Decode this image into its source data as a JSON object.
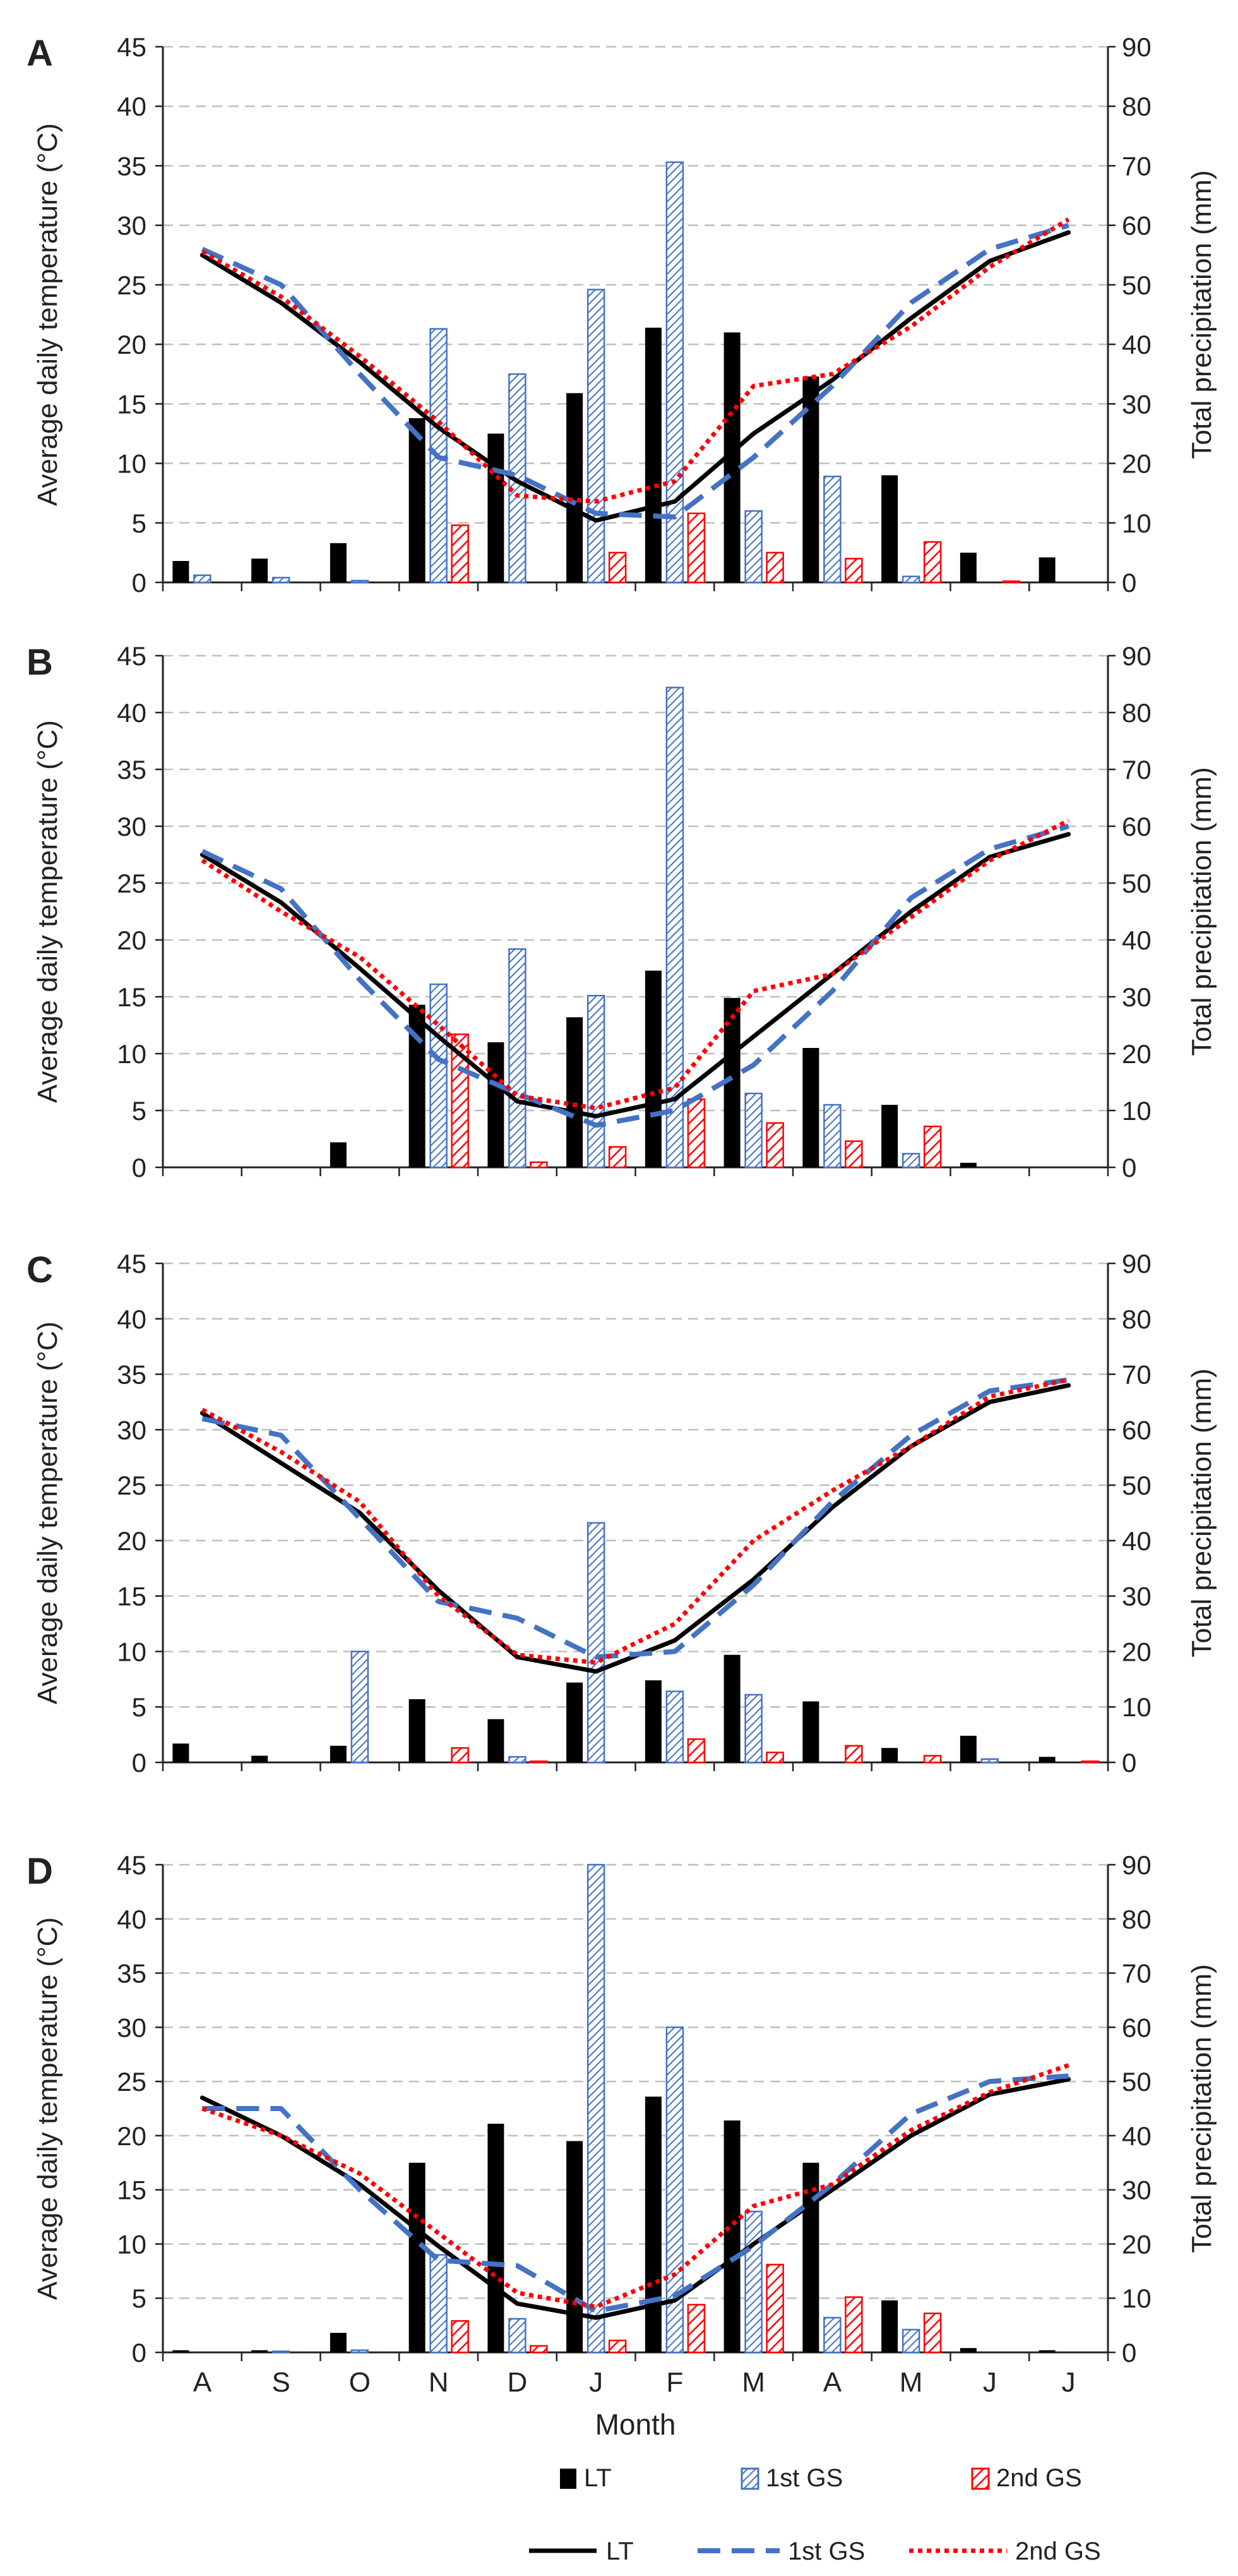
{
  "legend": {
    "bar_lt": "LT",
    "bar_gs1": "1st GS",
    "bar_gs2": "2nd GS",
    "line_lt": "LT",
    "line_gs1": "1st GS",
    "line_gs2": "2nd GS"
  },
  "colors": {
    "lt": "#000000",
    "gs1": "#4472C4",
    "gs2": "#FF0000",
    "grid": "#BFBFBF"
  },
  "chart_data": [
    {
      "panel": "A",
      "type": "bar+line",
      "xlabel": "Month",
      "ylabel_left": "Average daily temperature (°C)",
      "ylabel_right": "Total precipitation (mm)",
      "ylim_left": [
        0,
        45
      ],
      "ylim_right": [
        0,
        90
      ],
      "left_ticks": [
        "0",
        "5",
        "10",
        "15",
        "20",
        "25",
        "30",
        "35",
        "40",
        "45"
      ],
      "right_ticks": [
        "0",
        "10",
        "20",
        "30",
        "40",
        "50",
        "60",
        "70",
        "80",
        "90"
      ],
      "categories": [
        "A",
        "S",
        "O",
        "N",
        "D",
        "J",
        "F",
        "M",
        "A",
        "M",
        "J",
        "J"
      ],
      "bars": [
        {
          "name": "LT",
          "values": [
            3.6,
            4.0,
            6.6,
            27.6,
            25.0,
            31.8,
            42.8,
            42.0,
            34.6,
            18.0,
            5.0,
            4.2
          ]
        },
        {
          "name": "1st GS",
          "values": [
            1.2,
            0.8,
            0.3,
            42.6,
            35.0,
            49.2,
            70.6,
            12.0,
            17.8,
            1.0,
            0,
            0
          ]
        },
        {
          "name": "2nd GS",
          "values": [
            0,
            0,
            0,
            9.6,
            0,
            5.0,
            11.6,
            5.0,
            4.0,
            6.8,
            0.2,
            0
          ]
        }
      ],
      "lines": [
        {
          "name": "LT",
          "values": [
            27.5,
            23.5,
            18.5,
            13.0,
            8.5,
            5.2,
            6.8,
            12.5,
            17.0,
            22.2,
            27.0,
            29.4
          ]
        },
        {
          "name": "1st GS",
          "values": [
            28.0,
            25.0,
            17.5,
            10.5,
            9.0,
            5.8,
            5.5,
            10.5,
            16.5,
            23.5,
            28.0,
            30.0
          ]
        },
        {
          "name": "2nd GS",
          "values": [
            27.8,
            24.0,
            19.0,
            13.5,
            7.3,
            6.8,
            8.5,
            16.5,
            17.5,
            21.5,
            26.5,
            30.5
          ]
        }
      ]
    },
    {
      "panel": "B",
      "type": "bar+line",
      "xlabel": "Month",
      "ylabel_left": "Average daily temperature (°C)",
      "ylabel_right": "Total precipitation (mm)",
      "ylim_left": [
        0,
        45
      ],
      "ylim_right": [
        0,
        90
      ],
      "left_ticks": [
        "0",
        "5",
        "10",
        "15",
        "20",
        "25",
        "30",
        "35",
        "40",
        "45"
      ],
      "right_ticks": [
        "0",
        "10",
        "20",
        "30",
        "40",
        "50",
        "60",
        "70",
        "80",
        "90"
      ],
      "categories": [
        "A",
        "S",
        "O",
        "N",
        "D",
        "J",
        "F",
        "M",
        "A",
        "M",
        "J",
        "J"
      ],
      "bars": [
        {
          "name": "LT",
          "values": [
            0,
            0,
            4.4,
            28.6,
            22.0,
            26.4,
            34.6,
            29.8,
            21.0,
            11.0,
            0.8,
            0
          ]
        },
        {
          "name": "1st GS",
          "values": [
            0,
            0,
            0,
            32.2,
            38.4,
            30.2,
            84.4,
            13.0,
            11.0,
            2.4,
            0,
            0
          ]
        },
        {
          "name": "2nd GS",
          "values": [
            0,
            0,
            0,
            23.4,
            0.9,
            3.6,
            12.0,
            7.8,
            4.6,
            7.2,
            0,
            0
          ]
        }
      ],
      "lines": [
        {
          "name": "LT",
          "values": [
            27.5,
            23.3,
            17.5,
            11.5,
            5.8,
            4.5,
            6.0,
            11.5,
            17.0,
            22.5,
            27.3,
            29.3
          ]
        },
        {
          "name": "1st GS",
          "values": [
            27.8,
            24.5,
            16.5,
            9.5,
            6.5,
            3.7,
            5.0,
            9.0,
            15.5,
            23.7,
            28.0,
            30.0
          ]
        },
        {
          "name": "2nd GS",
          "values": [
            27.0,
            22.5,
            18.5,
            12.5,
            6.3,
            5.2,
            7.0,
            15.5,
            17.0,
            22.0,
            27.0,
            30.5
          ]
        }
      ]
    },
    {
      "panel": "C",
      "type": "bar+line",
      "xlabel": "Month",
      "ylabel_left": "Average daily temperature (°C)",
      "ylabel_right": "Total precipitation (mm)",
      "ylim_left": [
        0,
        45
      ],
      "ylim_right": [
        0,
        90
      ],
      "left_ticks": [
        "0",
        "5",
        "10",
        "15",
        "20",
        "25",
        "30",
        "35",
        "40",
        "45"
      ],
      "right_ticks": [
        "0",
        "10",
        "20",
        "30",
        "40",
        "50",
        "60",
        "70",
        "80",
        "90"
      ],
      "categories": [
        "A",
        "S",
        "O",
        "N",
        "D",
        "J",
        "F",
        "M",
        "A",
        "M",
        "J",
        "J"
      ],
      "bars": [
        {
          "name": "LT",
          "values": [
            3.4,
            1.2,
            3.0,
            11.4,
            7.8,
            14.4,
            14.8,
            19.4,
            11.0,
            2.6,
            4.8,
            1.0
          ]
        },
        {
          "name": "1st GS",
          "values": [
            0,
            0,
            20.0,
            0,
            1.0,
            43.2,
            12.8,
            12.2,
            0,
            0,
            0.6,
            0
          ]
        },
        {
          "name": "2nd GS",
          "values": [
            0,
            0,
            0,
            2.6,
            0.2,
            0,
            4.2,
            1.8,
            3.0,
            1.2,
            0,
            0.2
          ]
        }
      ],
      "lines": [
        {
          "name": "LT",
          "values": [
            31.5,
            27.0,
            22.5,
            15.5,
            9.5,
            8.2,
            11.0,
            16.5,
            23.0,
            28.5,
            32.5,
            34.0
          ]
        },
        {
          "name": "1st GS",
          "values": [
            31.0,
            29.5,
            22.0,
            14.5,
            13.0,
            9.5,
            10.0,
            16.0,
            23.5,
            29.5,
            33.5,
            34.5
          ]
        },
        {
          "name": "2nd GS",
          "values": [
            31.8,
            28.0,
            23.5,
            15.0,
            9.7,
            9.0,
            12.5,
            20.0,
            24.5,
            28.5,
            33.0,
            34.5
          ]
        }
      ]
    },
    {
      "panel": "D",
      "type": "bar+line",
      "xlabel": "Month",
      "ylabel_left": "Average daily temperature (°C)",
      "ylabel_right": "Total precipitation (mm)",
      "ylim_left": [
        0,
        45
      ],
      "ylim_right": [
        0,
        90
      ],
      "left_ticks": [
        "0",
        "5",
        "10",
        "15",
        "20",
        "25",
        "30",
        "35",
        "40",
        "45"
      ],
      "right_ticks": [
        "0",
        "10",
        "20",
        "30",
        "40",
        "50",
        "60",
        "70",
        "80",
        "90"
      ],
      "categories": [
        "A",
        "S",
        "O",
        "N",
        "D",
        "J",
        "F",
        "M",
        "A",
        "M",
        "J",
        "J"
      ],
      "bars": [
        {
          "name": "LT",
          "values": [
            0.4,
            0.4,
            3.6,
            35.0,
            42.2,
            39.0,
            47.2,
            42.8,
            35.0,
            9.6,
            0.8,
            0.4
          ]
        },
        {
          "name": "1st GS",
          "values": [
            0,
            0.2,
            0.4,
            18.0,
            6.2,
            90.0,
            60.0,
            26.0,
            6.4,
            4.2,
            0,
            0
          ]
        },
        {
          "name": "2nd GS",
          "values": [
            0,
            0,
            0,
            5.8,
            1.2,
            2.2,
            8.8,
            16.2,
            10.2,
            7.2,
            0,
            0
          ]
        }
      ],
      "lines": [
        {
          "name": "LT",
          "values": [
            23.5,
            20.0,
            15.5,
            9.8,
            4.5,
            3.2,
            4.8,
            10.0,
            15.0,
            20.0,
            23.8,
            25.2
          ]
        },
        {
          "name": "1st GS",
          "values": [
            22.5,
            22.5,
            15.0,
            8.5,
            8.0,
            3.8,
            5.2,
            9.8,
            15.5,
            22.0,
            25.0,
            25.5
          ]
        },
        {
          "name": "2nd GS",
          "values": [
            22.5,
            20.0,
            16.5,
            11.0,
            5.5,
            4.2,
            7.2,
            13.5,
            15.5,
            20.5,
            24.0,
            26.5
          ]
        }
      ]
    }
  ]
}
